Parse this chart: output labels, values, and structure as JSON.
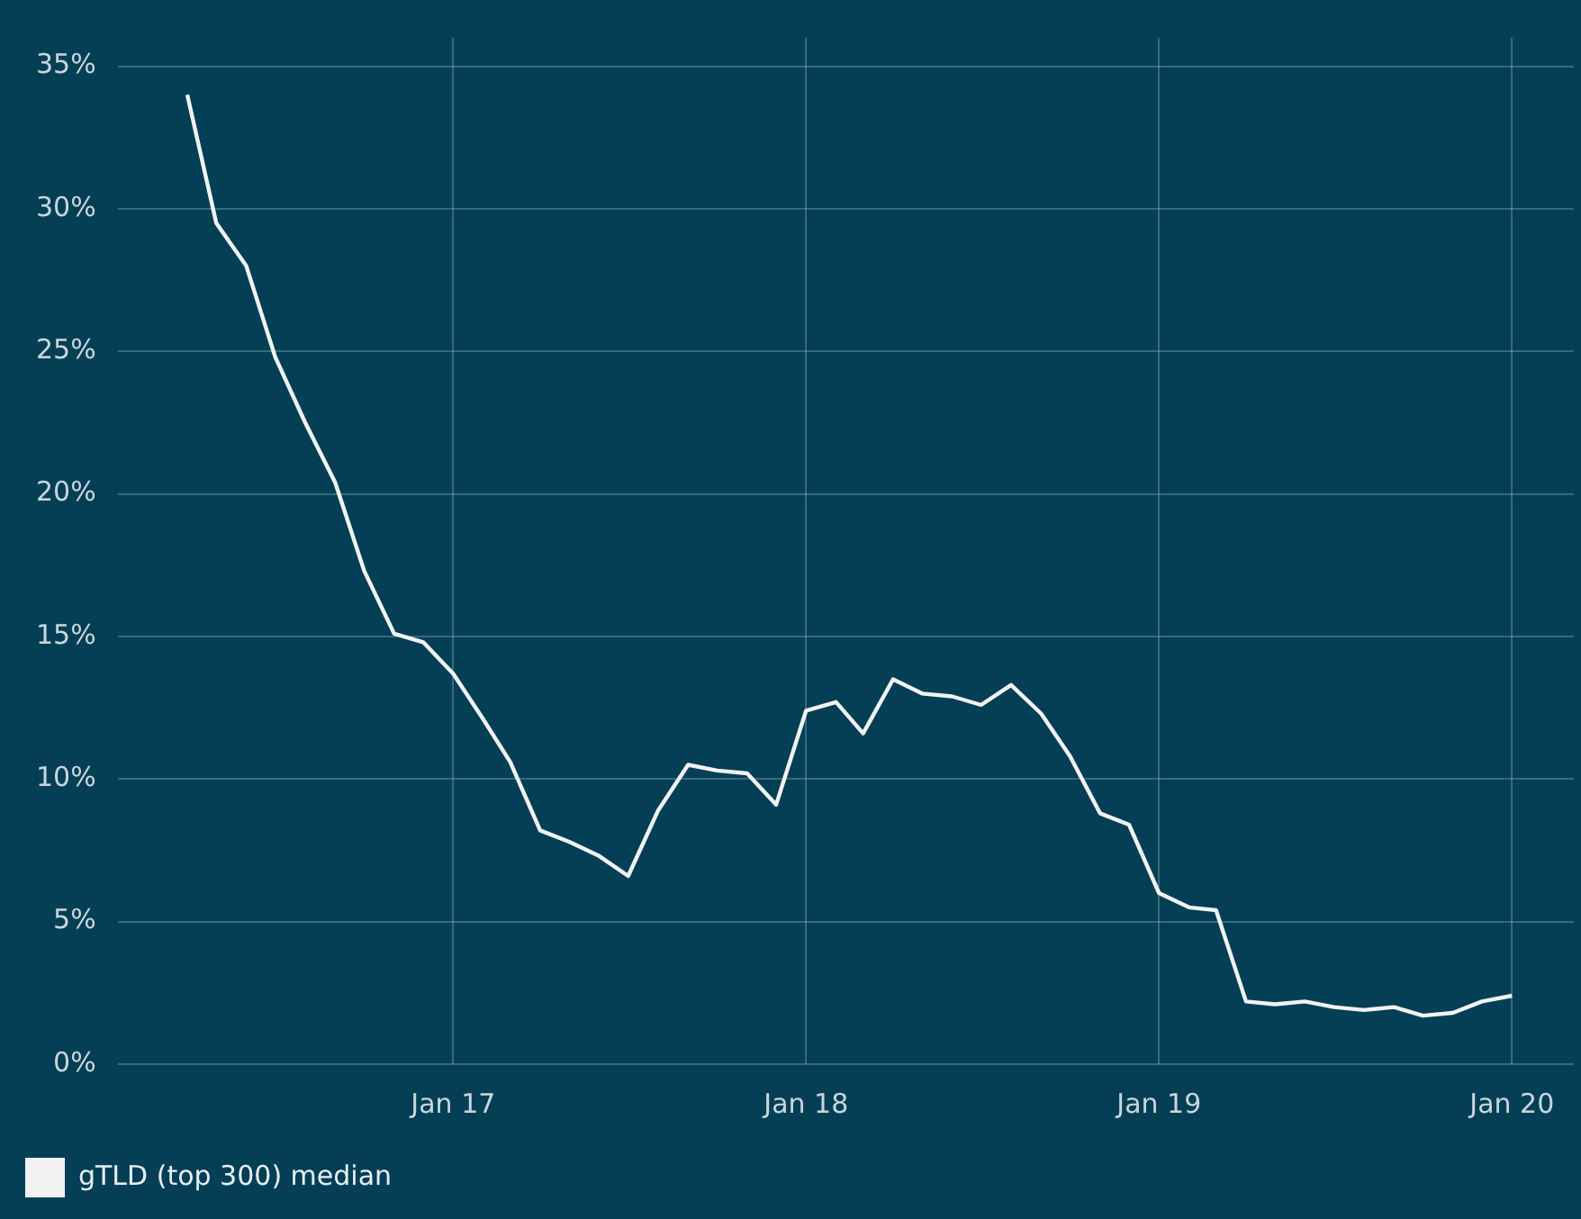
{
  "chart_data": {
    "type": "line",
    "x": [
      "2016-04",
      "2016-05",
      "2016-06",
      "2016-07",
      "2016-08",
      "2016-09",
      "2016-10",
      "2016-11",
      "2016-12",
      "2017-01",
      "2017-02",
      "2017-03",
      "2017-04",
      "2017-05",
      "2017-06",
      "2017-07",
      "2017-08",
      "2017-09",
      "2017-10",
      "2017-11",
      "2017-12",
      "2018-01",
      "2018-02",
      "2018-03",
      "2018-04",
      "2018-05",
      "2018-06",
      "2018-07",
      "2018-08",
      "2018-09",
      "2018-10",
      "2018-11",
      "2018-12",
      "2019-01",
      "2019-02",
      "2019-03",
      "2019-04",
      "2019-05",
      "2019-06",
      "2019-07",
      "2019-08",
      "2019-09",
      "2019-10",
      "2019-11",
      "2019-12",
      "2020-01"
    ],
    "series": [
      {
        "name": "gTLD (top 300) median",
        "color": "#f2f2f2",
        "values": [
          34.0,
          29.5,
          28.0,
          24.8,
          22.5,
          20.4,
          17.3,
          15.1,
          14.8,
          13.7,
          12.1,
          10.6,
          8.2,
          7.8,
          7.3,
          6.6,
          8.9,
          10.5,
          10.3,
          10.2,
          9.1,
          12.4,
          12.7,
          11.6,
          13.5,
          13.0,
          12.9,
          12.6,
          13.3,
          12.3,
          10.8,
          8.8,
          8.4,
          6.0,
          5.5,
          5.4,
          2.2,
          2.1,
          2.2,
          2.0,
          1.9,
          2.0,
          1.7,
          1.8,
          2.2,
          2.4
        ]
      }
    ],
    "xlim": [
      "2016-01-20",
      "2020-03-05"
    ],
    "xticks": [
      {
        "value": "2017-01",
        "label": "Jan 17"
      },
      {
        "value": "2018-01",
        "label": "Jan 18"
      },
      {
        "value": "2019-01",
        "label": "Jan 19"
      },
      {
        "value": "2020-01",
        "label": "Jan 20"
      }
    ],
    "ylim": [
      0,
      36
    ],
    "yticks": [
      {
        "value": 0,
        "label": "0%"
      },
      {
        "value": 5,
        "label": "5%"
      },
      {
        "value": 10,
        "label": "10%"
      },
      {
        "value": 15,
        "label": "15%"
      },
      {
        "value": 20,
        "label": "20%"
      },
      {
        "value": 25,
        "label": "25%"
      },
      {
        "value": 30,
        "label": "30%"
      },
      {
        "value": 35,
        "label": "35%"
      }
    ],
    "grid": true,
    "legend": "bottom left",
    "marker": "none",
    "line_style": "solid"
  }
}
